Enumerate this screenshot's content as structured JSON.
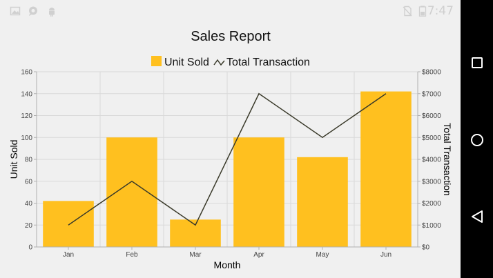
{
  "status_bar": {
    "time": "7:47",
    "left_icons": [
      "image-icon",
      "chat-icon",
      "android-icon"
    ],
    "right_icons": [
      "no-sim-icon",
      "battery-icon"
    ]
  },
  "nav_bar": {
    "buttons": [
      "recents-button",
      "home-button",
      "back-button"
    ]
  },
  "colors": {
    "bar": "#FFC01F",
    "line": "#3a3a2a",
    "grid": "#d9d9d9",
    "axis": "#b0b0b0"
  },
  "chart_data": {
    "type": "bar",
    "title": "Sales Report",
    "xlabel": "Month",
    "ylabel": "Unit Sold",
    "y2label": "Total Transaction",
    "categories": [
      "Jan",
      "Feb",
      "Mar",
      "Apr",
      "May",
      "Jun"
    ],
    "ylim": [
      0,
      160
    ],
    "yticks": [
      0,
      20,
      40,
      60,
      80,
      100,
      120,
      140,
      160
    ],
    "y2lim": [
      0,
      8000
    ],
    "y2ticks": [
      "$0",
      "$1000",
      "$2000",
      "$3000",
      "$4000",
      "$5000",
      "$6000",
      "$7000",
      "$8000"
    ],
    "y2tick_values": [
      0,
      1000,
      2000,
      3000,
      4000,
      5000,
      6000,
      7000,
      8000
    ],
    "grid": true,
    "legend_position": "top-center",
    "series": [
      {
        "name": "Unit Sold",
        "type": "bar",
        "axis": "left",
        "values": [
          42,
          100,
          25,
          100,
          82,
          142
        ]
      },
      {
        "name": "Total Transaction",
        "type": "line",
        "axis": "right",
        "values": [
          1000,
          3000,
          1000,
          7000,
          5000,
          7000
        ]
      }
    ]
  }
}
